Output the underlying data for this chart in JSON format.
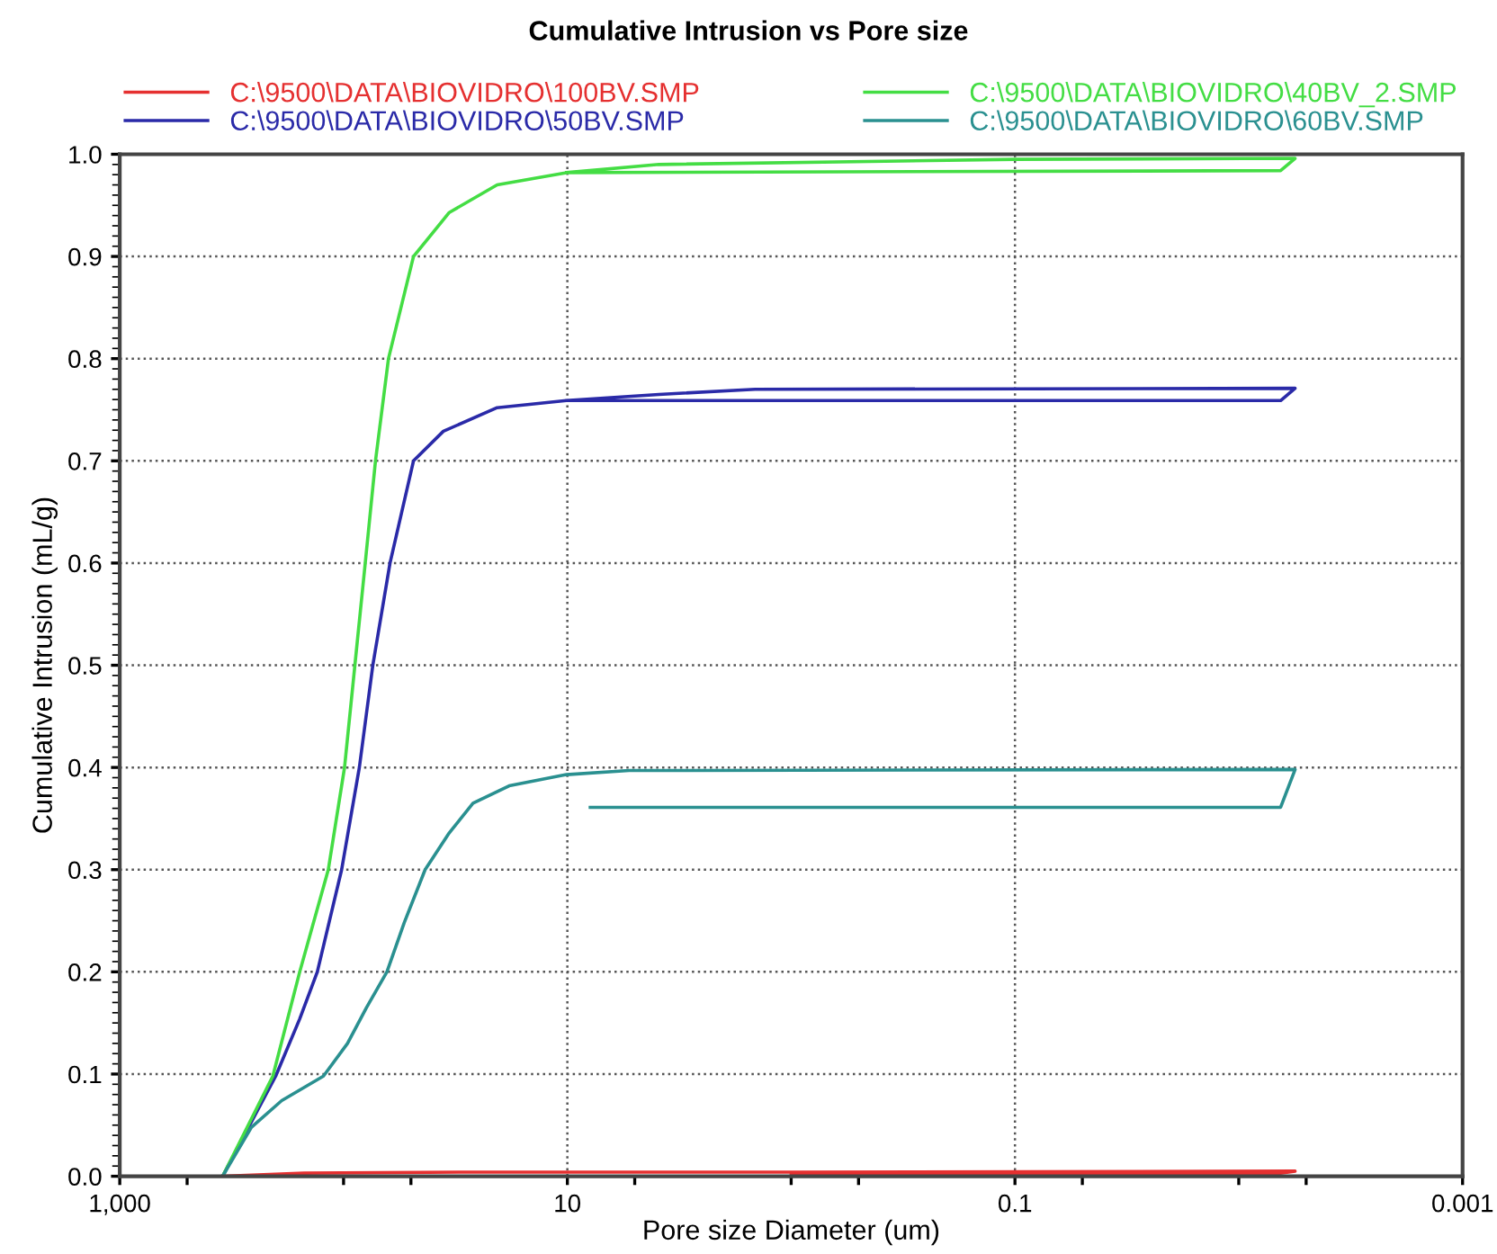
{
  "chart_data": {
    "type": "line",
    "title": "Cumulative Intrusion vs Pore size",
    "xlabel": "Pore size Diameter (um)",
    "ylabel": "Cumulative Intrusion (mL/g)",
    "log": "x",
    "xlim": [
      1000,
      0.001
    ],
    "ylim": [
      0,
      1.0
    ],
    "xticks": [
      {
        "value": 1000,
        "label": "1,000"
      },
      {
        "value": 500,
        "label": null
      },
      {
        "value": 100,
        "label": null
      },
      {
        "value": 50,
        "label": null
      },
      10,
      {
        "value": 5,
        "label": null
      },
      {
        "value": 1,
        "label": null
      },
      {
        "value": 0.5,
        "label": null
      },
      0.1,
      {
        "value": 0.05,
        "label": null
      },
      {
        "value": 0.01,
        "label": null
      },
      {
        "value": 0.005,
        "label": null
      },
      0.001
    ],
    "yticks": [
      {
        "value": 0,
        "label": "0.0"
      },
      0.1,
      0.2,
      0.3,
      0.4,
      0.5,
      0.6,
      0.7,
      0.8,
      0.9,
      {
        "value": 1.0,
        "label": "1.0"
      }
    ],
    "grid": true,
    "legend": "top",
    "marker": "none",
    "line_style": "solid",
    "series": [
      {
        "name": "C:\\9500\\DATA\\BIOVIDRO\\100BV.SMP",
        "color": "#e53030",
        "x": [
          347,
          150,
          30,
          1,
          0.0056,
          0.0065,
          1
        ],
        "values": [
          0,
          0.003,
          0.004,
          0.004,
          0.005,
          0.003,
          0.003
        ]
      },
      {
        "name": "C:\\9500\\DATA\\BIOVIDRO\\50BV.SMP",
        "color": "#2a2aa8",
        "x": [
          347,
          201,
          157,
          131,
          102,
          85,
          74,
          62,
          48.7,
          35.8,
          20.6,
          10.1,
          3.9,
          1.45,
          0.0056,
          0.0065,
          10.1
        ],
        "values": [
          0,
          0.098,
          0.154,
          0.2,
          0.3,
          0.4,
          0.5,
          0.6,
          0.7,
          0.729,
          0.752,
          0.759,
          0.765,
          0.77,
          0.771,
          0.759,
          0.759
        ]
      },
      {
        "name": "C:\\9500\\DATA\\BIOVIDRO\\40BV_2.SMP",
        "color": "#44dd44",
        "x": [
          347,
          207,
          157,
          117,
          99,
          89,
          80,
          72,
          63,
          48.7,
          33.7,
          20.6,
          10.1,
          3.9,
          0.1,
          0.0056,
          0.0065,
          10.1
        ],
        "values": [
          0,
          0.098,
          0.2,
          0.3,
          0.4,
          0.5,
          0.6,
          0.7,
          0.8,
          0.9,
          0.943,
          0.97,
          0.982,
          0.99,
          0.995,
          0.996,
          0.984,
          0.982
        ]
      },
      {
        "name": "C:\\9500\\DATA\\BIOVIDRO\\60BV.SMP",
        "color": "#2a9090",
        "x": [
          347,
          258,
          189,
          123,
          96,
          79,
          64,
          53.6,
          43.2,
          33.7,
          26.4,
          18.2,
          10.1,
          5.3,
          0.0056,
          0.0065,
          7.9
        ],
        "values": [
          0,
          0.048,
          0.074,
          0.098,
          0.13,
          0.165,
          0.2,
          0.248,
          0.3,
          0.336,
          0.365,
          0.382,
          0.393,
          0.397,
          0.398,
          0.361,
          0.361
        ]
      }
    ]
  }
}
